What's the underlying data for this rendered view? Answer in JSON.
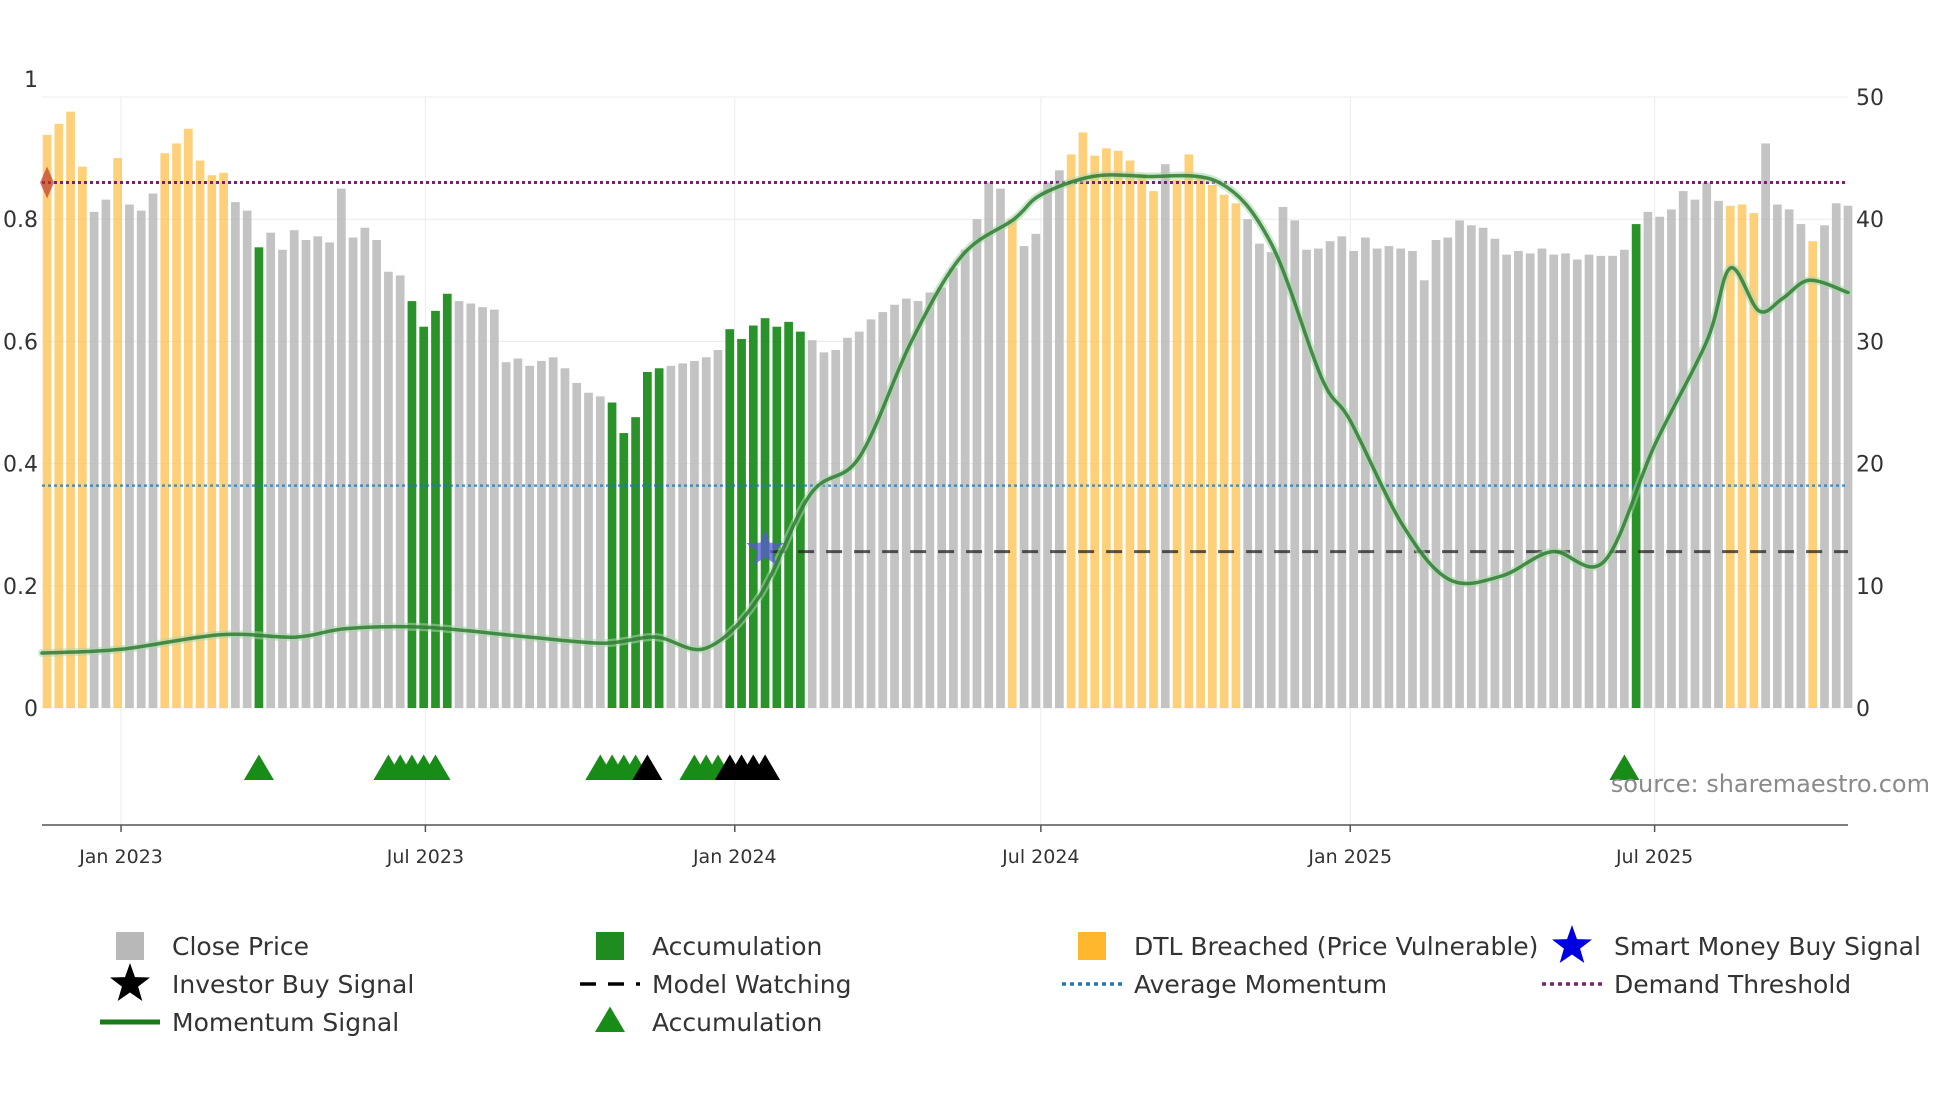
{
  "chart_data": {
    "type": "bar",
    "title": "",
    "source": "source: sharemaestro.com",
    "left_axis": {
      "ticks": [
        0,
        0.2,
        0.4,
        0.6,
        0.8,
        1
      ],
      "tick_labels": [
        "0",
        "0.2",
        "0.4",
        "0.6",
        "0.8",
        "1"
      ],
      "ylim": [
        0,
        1
      ]
    },
    "right_axis": {
      "ticks": [
        0,
        10,
        20,
        30,
        40,
        50
      ],
      "tick_labels": [
        "0",
        "10",
        "20",
        "30",
        "40",
        "50"
      ],
      "ylim": [
        0,
        50
      ]
    },
    "x_axis": {
      "range": [
        "2022-11-15",
        "2025-10-24"
      ],
      "ticks": [
        {
          "date": "2023-01-01",
          "label": "Jan 2023"
        },
        {
          "date": "2023-07-01",
          "label": "Jul 2023"
        },
        {
          "date": "2024-01-01",
          "label": "Jan 2024"
        },
        {
          "date": "2024-07-01",
          "label": "Jul 2024"
        },
        {
          "date": "2025-01-01",
          "label": "Jan 2025"
        },
        {
          "date": "2025-07-01",
          "label": "Jul 2025"
        }
      ]
    },
    "colors": {
      "close": "#b8b8b8",
      "accumulation": "#1e8c1e",
      "dtl": "#ffc04d",
      "momentum": "#2e7d32",
      "avg_momentum": "#1f77b4",
      "demand": "#7b1f72",
      "model_watching": "#222222",
      "smart_money": "#2222cc",
      "investor": "#000000",
      "accum_marker": "#178c17"
    },
    "bar_series": {
      "name": "Close Price",
      "start": "2022-11-18",
      "interval_days": 7,
      "values": [
        46.9,
        47.8,
        48.8,
        44.3,
        40.6,
        41.6,
        45.0,
        41.2,
        40.7,
        42.1,
        45.4,
        46.2,
        47.4,
        44.8,
        43.6,
        43.8,
        41.4,
        40.7,
        37.7,
        38.9,
        37.5,
        39.1,
        38.3,
        38.6,
        38.1,
        42.5,
        38.5,
        39.3,
        38.3,
        35.7,
        35.4,
        33.3,
        31.2,
        32.5,
        33.9,
        33.3,
        33.1,
        32.8,
        32.6,
        28.3,
        28.6,
        28.0,
        28.4,
        28.7,
        27.8,
        26.6,
        25.8,
        25.5,
        25.0,
        22.5,
        23.8,
        27.5,
        27.8,
        28.0,
        28.2,
        28.4,
        28.7,
        29.3,
        31.0,
        30.2,
        31.3,
        31.9,
        31.2,
        31.6,
        30.8,
        30.1,
        29.1,
        29.3,
        30.3,
        30.8,
        31.8,
        32.4,
        33.0,
        33.5,
        33.3,
        34.0,
        34.4,
        36.0,
        37.5,
        40.0,
        43.0,
        42.5,
        40.0,
        37.8,
        38.8,
        43.0,
        44.0,
        45.3,
        47.1,
        45.2,
        45.8,
        45.6,
        44.8,
        43.7,
        42.3,
        44.5,
        43.2,
        45.3,
        43.5,
        42.8,
        42.0,
        41.3,
        40.0,
        38.0,
        37.3,
        41.0,
        39.9,
        37.5,
        37.6,
        38.2,
        38.6,
        37.4,
        38.5,
        37.6,
        37.8,
        37.6,
        37.4,
        35.0,
        38.3,
        38.5,
        39.9,
        39.5,
        39.3,
        38.4,
        37.1,
        37.4,
        37.2,
        37.6,
        37.1,
        37.2,
        36.7,
        37.1,
        37.0,
        37.0,
        37.5,
        39.6,
        40.6,
        40.2,
        40.8,
        42.3,
        41.6,
        43.0,
        41.5,
        41.1,
        41.2,
        40.5,
        46.2,
        41.2,
        40.8,
        39.6,
        38.2,
        39.5,
        41.3,
        41.1
      ],
      "note": "Right axis scale; bars colored by category: grey = Close Price, green = Accumulation, orange = DTL Breached"
    },
    "bar_categories": {
      "accumulation_weeks": [
        18,
        31,
        32,
        33,
        34,
        48,
        49,
        50,
        51,
        52,
        58,
        59,
        60,
        61,
        62,
        63,
        64,
        135
      ],
      "dtl_weeks": [
        0,
        1,
        2,
        3,
        6,
        10,
        11,
        12,
        13,
        14,
        15,
        82,
        87,
        88,
        89,
        90,
        91,
        92,
        93,
        94,
        96,
        97,
        98,
        99,
        100,
        101,
        143,
        144,
        145,
        150
      ]
    },
    "momentum_signal": {
      "name": "Momentum Signal",
      "axis": "right",
      "dates": [
        "2022-11-15",
        "2023-01-01",
        "2023-03-01",
        "2023-04-15",
        "2023-05-15",
        "2023-07-01",
        "2023-09-01",
        "2023-10-15",
        "2023-11-15",
        "2023-12-15",
        "2024-01-15",
        "2024-02-15",
        "2024-03-15",
        "2024-04-15",
        "2024-05-15",
        "2024-06-15",
        "2024-07-01",
        "2024-08-01",
        "2024-09-01",
        "2024-10-15",
        "2024-11-15",
        "2024-12-15",
        "2025-01-01",
        "2025-02-01",
        "2025-03-01",
        "2025-04-01",
        "2025-05-01",
        "2025-06-01",
        "2025-07-01",
        "2025-08-01",
        "2025-08-15",
        "2025-09-01",
        "2025-09-15",
        "2025-10-01",
        "2025-10-24"
      ],
      "values": [
        4.5,
        4.8,
        6.0,
        5.8,
        6.5,
        6.6,
        5.8,
        5.3,
        5.8,
        4.9,
        9.0,
        17.5,
        20.5,
        30.0,
        37.0,
        40.0,
        42.0,
        43.5,
        43.5,
        43.0,
        38.0,
        27.0,
        23.5,
        15.0,
        10.5,
        10.8,
        12.8,
        12.0,
        21.5,
        30.0,
        36.0,
        32.5,
        33.5,
        35.0,
        34.0
      ]
    },
    "average_momentum": {
      "name": "Average Momentum",
      "axis": "right",
      "value": 18.2
    },
    "demand_threshold": {
      "name": "Demand Threshold",
      "axis": "right",
      "value": 43.0
    },
    "model_watching": {
      "name": "Model Watching",
      "axis": "right",
      "value": 12.8,
      "start": "2024-01-22",
      "end": "2025-10-24"
    },
    "smart_money_buy_signal": {
      "name": "Smart Money Buy Signal",
      "date": "2024-01-19",
      "value": 13.0
    },
    "demand_marker": {
      "date": "2022-11-18",
      "value": 43.0
    },
    "accumulation_markers": {
      "name": "Accumulation",
      "dates": [
        "2023-03-24",
        "2023-06-09",
        "2023-06-16",
        "2023-06-23",
        "2023-06-30",
        "2023-07-07",
        "2023-10-13",
        "2023-10-20",
        "2023-10-27",
        "2023-11-03",
        "2023-12-08",
        "2023-12-15",
        "2023-12-22",
        "2023-12-29",
        "2024-01-05",
        "2025-06-13"
      ]
    },
    "investor_buy_markers": {
      "name": "Investor Buy Signal",
      "dates": [
        "2023-11-10",
        "2023-12-29",
        "2024-01-05",
        "2024-01-12",
        "2024-01-19"
      ]
    },
    "legend": [
      {
        "name": "Close Price",
        "symbol": "square",
        "color": "#b8b8b8"
      },
      {
        "name": "Accumulation",
        "symbol": "square",
        "color": "#1e8c1e"
      },
      {
        "name": "DTL Breached (Price Vulnerable)",
        "symbol": "square",
        "color": "#ffb82e"
      },
      {
        "name": "Smart Money Buy Signal",
        "symbol": "star",
        "color": "#0000e0"
      },
      {
        "name": "Investor Buy Signal",
        "symbol": "star",
        "color": "#000000"
      },
      {
        "name": "Model Watching",
        "symbol": "dash",
        "color": "#000000"
      },
      {
        "name": "Average Momentum",
        "symbol": "dot",
        "color": "#1f77b4"
      },
      {
        "name": "Demand Threshold",
        "symbol": "dot",
        "color": "#7b1f72"
      },
      {
        "name": "Momentum Signal",
        "symbol": "line",
        "color": "#1a7a1a"
      },
      {
        "name": "Accumulation",
        "symbol": "triangle",
        "color": "#178c17"
      }
    ]
  }
}
